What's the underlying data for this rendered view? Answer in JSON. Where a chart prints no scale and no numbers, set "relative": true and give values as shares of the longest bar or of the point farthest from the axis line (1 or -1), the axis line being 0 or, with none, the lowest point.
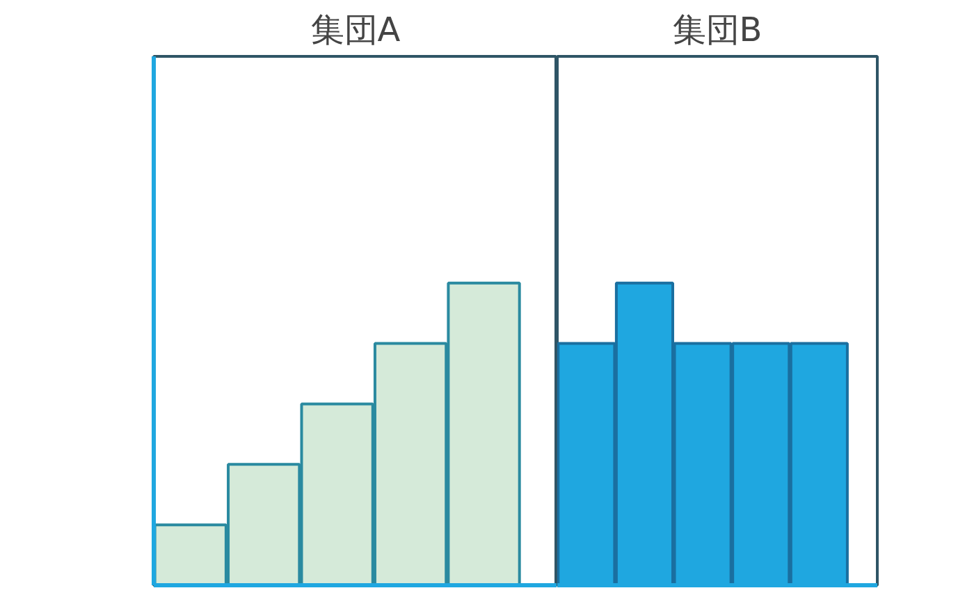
{
  "chart_data": [
    {
      "type": "bar",
      "title": "集団A",
      "relative": true,
      "categories": [
        null,
        null,
        null,
        null,
        null
      ],
      "values": [
        0.2,
        0.4,
        0.6,
        0.8,
        1.0
      ],
      "color": "#d5ead9"
    },
    {
      "type": "bar",
      "title": "集団B",
      "relative": true,
      "categories": [
        null,
        null,
        null,
        null,
        null
      ],
      "values": [
        0.8,
        1.0,
        0.8,
        0.8,
        0.8
      ],
      "color": "#1fa7e0"
    }
  ]
}
